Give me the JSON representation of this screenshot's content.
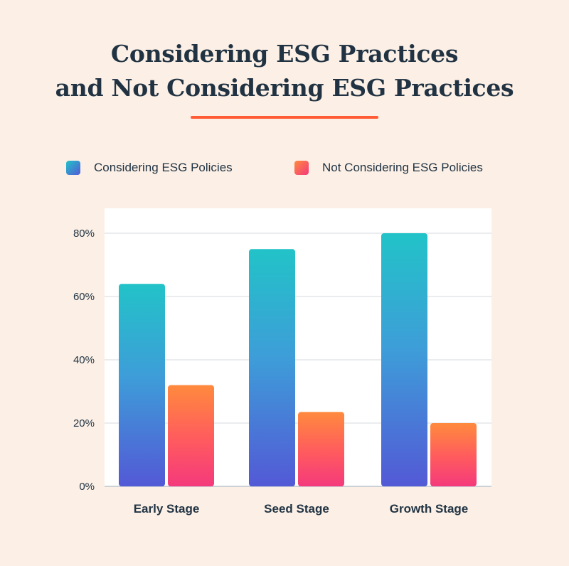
{
  "colors": {
    "background": "#fcf0e6",
    "text": "#213343",
    "accent_rule": "#ff5c35",
    "considering_gradient": [
      "#5359d6",
      "#3d9ed8",
      "#22c3c8"
    ],
    "not_considering_gradient": [
      "#ff8a3d",
      "#ff5a5f",
      "#f4397c"
    ]
  },
  "chart_data": {
    "type": "bar",
    "title_lines": [
      "Considering ESG Practices",
      "and Not Considering ESG Practices"
    ],
    "categories": [
      "Early Stage",
      "Seed Stage",
      "Growth Stage"
    ],
    "series": [
      {
        "name": "Considering ESG Policies",
        "values": [
          64,
          75,
          80
        ]
      },
      {
        "name": "Not Considering ESG Policies",
        "values": [
          32,
          23.5,
          20
        ]
      }
    ],
    "ylim": [
      0,
      80
    ],
    "yticks": [
      0,
      20,
      40,
      60,
      80
    ],
    "ytick_labels": [
      "0%",
      "20%",
      "40%",
      "60%",
      "80%"
    ],
    "grid": true,
    "legend": "top"
  }
}
